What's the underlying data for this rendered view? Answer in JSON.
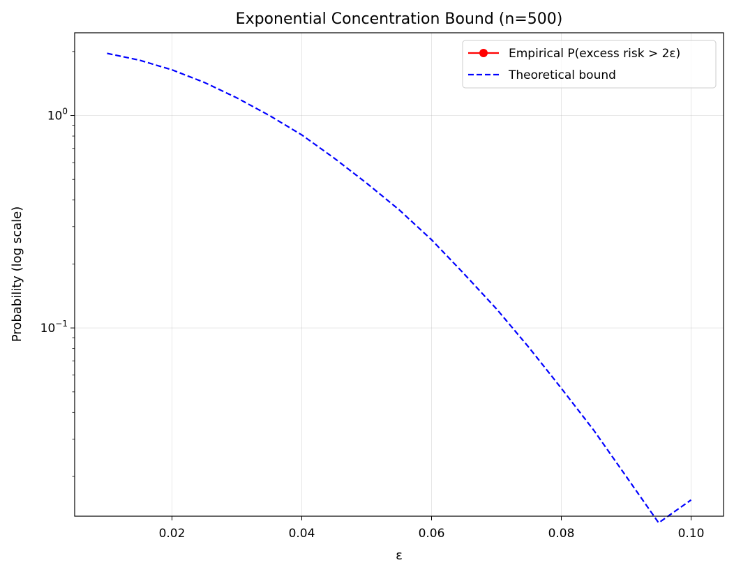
{
  "chart_data": {
    "type": "line",
    "title": "Exponential Concentration Bound (n=500)",
    "xlabel": "ε",
    "ylabel": "Probability (log scale)",
    "xlim": [
      0.005,
      0.105
    ],
    "ylim": [
      0.013,
      2.45
    ],
    "yscale": "log",
    "grid": true,
    "legend_position": "top-right",
    "x_ticks": [
      {
        "value": 0.02,
        "label": "0.02"
      },
      {
        "value": 0.04,
        "label": "0.04"
      },
      {
        "value": 0.06,
        "label": "0.06"
      },
      {
        "value": 0.08,
        "label": "0.08"
      },
      {
        "value": 0.1,
        "label": "0.10"
      }
    ],
    "y_ticks": [
      {
        "value": 1,
        "base": "10",
        "exp": "0"
      },
      {
        "value": 0.1,
        "base": "10",
        "exp": "−1"
      }
    ],
    "series": [
      {
        "name": "Empirical P(excess risk > 2ε)",
        "color": "#ff0000",
        "style": "solid-marker",
        "x": [],
        "y": []
      },
      {
        "name": "Theoretical bound",
        "color": "#0000ff",
        "style": "dashed",
        "x": [
          0.01,
          0.015,
          0.02,
          0.025,
          0.03,
          0.035,
          0.04,
          0.045,
          0.05,
          0.055,
          0.06,
          0.065,
          0.07,
          0.075,
          0.08,
          0.085,
          0.09,
          0.095,
          0.1
        ],
        "y": [
          1.96,
          1.82,
          1.64,
          1.43,
          1.21,
          1.0,
          0.81,
          0.63,
          0.48,
          0.36,
          0.26,
          0.18,
          0.123,
          0.081,
          0.052,
          0.033,
          0.02,
          0.0121,
          0.0155
        ]
      }
    ]
  }
}
